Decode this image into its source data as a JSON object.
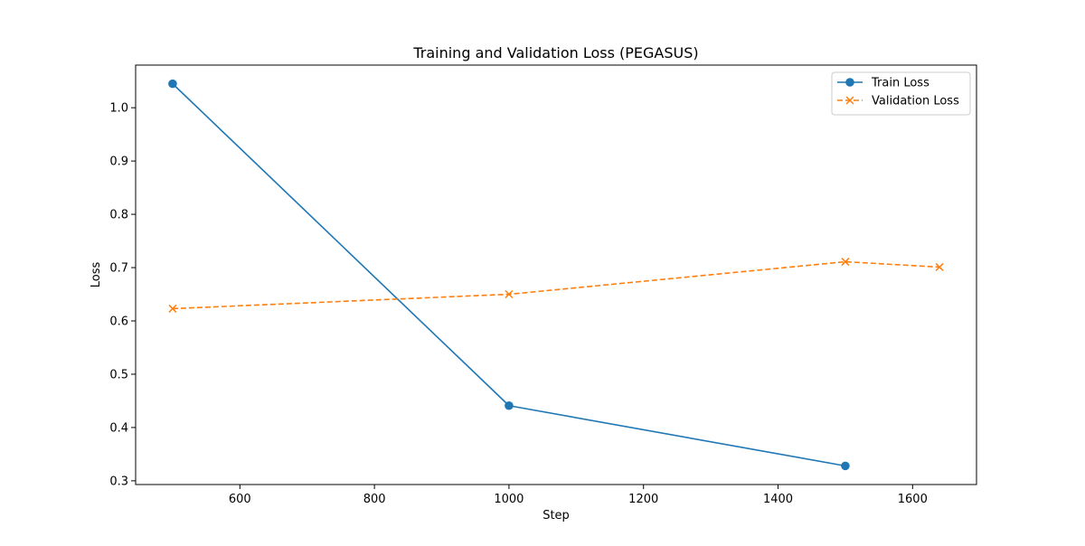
{
  "chart_data": {
    "type": "line",
    "title": "Training and Validation Loss (PEGASUS)",
    "xlabel": "Step",
    "ylabel": "Loss",
    "xlim": [
      445,
      1695
    ],
    "ylim": [
      0.293,
      1.08
    ],
    "xticks": [
      600,
      800,
      1000,
      1200,
      1400,
      1600
    ],
    "yticks": [
      0.3,
      0.4,
      0.5,
      0.6,
      0.7,
      0.8,
      0.9,
      1.0
    ],
    "xtick_labels": [
      "600",
      "800",
      "1000",
      "1200",
      "1400",
      "1600"
    ],
    "ytick_labels": [
      "0.3",
      "0.4",
      "0.5",
      "0.6",
      "0.7",
      "0.8",
      "0.9",
      "1.0"
    ],
    "grid": false,
    "legend_position": "top-right",
    "series": [
      {
        "name": "Train Loss",
        "color": "#1f77b4",
        "line_style": "solid",
        "marker": "circle",
        "x": [
          500,
          1000,
          1500
        ],
        "y": [
          1.045,
          0.441,
          0.328
        ]
      },
      {
        "name": "Validation Loss",
        "color": "#ff7f0e",
        "line_style": "dashed",
        "marker": "x",
        "x": [
          500,
          1000,
          1500,
          1640
        ],
        "y": [
          0.623,
          0.65,
          0.711,
          0.701
        ]
      }
    ]
  }
}
